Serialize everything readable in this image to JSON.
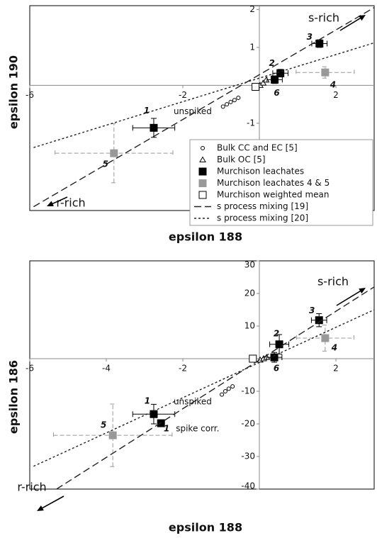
{
  "chart_data": [
    {
      "type": "scatter",
      "xlabel": "epsilon 188",
      "ylabel": "epsilon 190",
      "xlim": [
        -6,
        3
      ],
      "ylim": [
        -3.3,
        2.1
      ],
      "xticks": [
        -6,
        -2,
        2
      ],
      "yticks": [
        -1,
        1,
        2
      ],
      "grid": false,
      "legend": "lower right",
      "annotations": [
        "s-rich",
        "r-rich"
      ],
      "series": [
        {
          "name": "Bulk CC and EC [5]",
          "marker": "open-circle",
          "color": "#000000",
          "x": [
            -0.95,
            -0.85,
            -0.75,
            -0.65,
            -0.55
          ],
          "values": [
            -0.56,
            -0.5,
            -0.44,
            -0.39,
            -0.33
          ]
        },
        {
          "name": "Bulk OC [5]",
          "marker": "open-triangle",
          "color": "#000000",
          "x": [
            0.02,
            0.1,
            0.18
          ],
          "values": [
            0,
            0.06,
            0.14
          ]
        },
        {
          "name": "Murchison leachates",
          "marker": "square",
          "color": "#000000",
          "x": [
            -2.76,
            0.4,
            0.55,
            1.57
          ],
          "values": [
            -1.12,
            0.15,
            0.32,
            1.1
          ],
          "xerr": [
            0.55,
            0.2,
            0.2,
            0.2
          ],
          "yerr": [
            0.25,
            0.1,
            0.1,
            0.1
          ],
          "point_labels": [
            "1",
            "6",
            "2",
            "3"
          ],
          "notes": [
            "unspiked",
            null,
            null,
            null
          ]
        },
        {
          "name": "Murchison leachates 4 & 5",
          "marker": "square",
          "color": "#999999",
          "errorbar_style": "dashed",
          "x": [
            1.72,
            -3.8
          ],
          "values": [
            0.34,
            -1.79
          ],
          "xerr": [
            0.76,
            1.54
          ],
          "yerr": [
            0.15,
            0.78
          ],
          "point_labels": [
            "4",
            "5"
          ]
        },
        {
          "name": "Murchison weighted mean",
          "marker": "open-square",
          "color": "#000000",
          "x": [
            -0.1
          ],
          "values": [
            -0.04
          ]
        },
        {
          "name": "s process mixing [19]",
          "marker": "line",
          "style": "dashed",
          "color": "#222222",
          "x": [
            -5.9,
            3
          ],
          "values": [
            -3.2,
            2.05
          ]
        },
        {
          "name": "s process mixing [20]",
          "marker": "line",
          "style": "dotted",
          "color": "#222222",
          "x": [
            -5.9,
            3
          ],
          "values": [
            -1.64,
            1.12
          ]
        }
      ]
    },
    {
      "type": "scatter",
      "xlabel": "epsilon 188",
      "ylabel": "epsilon 186",
      "xlim": [
        -6,
        3
      ],
      "ylim": [
        -40,
        30
      ],
      "xticks": [
        -6,
        -4,
        -2,
        2
      ],
      "yticks": [
        -40,
        -30,
        -20,
        -10,
        10,
        20,
        30
      ],
      "grid": false,
      "annotations": [
        "s-rich",
        "r-rich"
      ],
      "series": [
        {
          "marker": "open-circle",
          "color": "#000000",
          "x": [
            -0.98,
            -0.89,
            -0.8,
            -0.7
          ],
          "values": [
            -11,
            -10,
            -9.2,
            -8.5
          ]
        },
        {
          "marker": "open-triangle",
          "color": "#000000",
          "x": [
            0.02,
            0.11,
            0.19
          ],
          "values": [
            -0.4,
            0,
            0.4
          ]
        },
        {
          "marker": "square",
          "color": "#000000",
          "x": [
            -2.76,
            -2.57,
            0.39,
            0.52,
            1.56
          ],
          "values": [
            -17,
            -19.8,
            0.4,
            4.4,
            11.8
          ],
          "xerr": [
            0.55,
            null,
            0.2,
            0.25,
            0.2
          ],
          "yerr": [
            3,
            null,
            1.5,
            3,
            2
          ],
          "point_labels": [
            "1",
            "1",
            "6",
            "2",
            "3"
          ],
          "notes": [
            "unspiked",
            "spike corr.",
            null,
            null,
            null
          ]
        },
        {
          "marker": "square",
          "color": "#999999",
          "errorbar_style": "dashed",
          "x": [
            1.72,
            -3.83
          ],
          "values": [
            6.3,
            -23.5
          ],
          "xerr": [
            0.75,
            1.55
          ],
          "yerr": [
            4,
            9.6
          ],
          "point_labels": [
            "4",
            "5"
          ]
        },
        {
          "marker": "open-square",
          "color": "#000000",
          "x": [
            -0.17
          ],
          "values": [
            0
          ]
        },
        {
          "marker": "line",
          "style": "dashed",
          "color": "#222222",
          "x": [
            -5.3,
            3
          ],
          "values": [
            -40,
            22
          ]
        },
        {
          "marker": "line",
          "style": "dotted",
          "color": "#222222",
          "x": [
            -5.9,
            3
          ],
          "values": [
            -33,
            15
          ]
        }
      ]
    }
  ]
}
